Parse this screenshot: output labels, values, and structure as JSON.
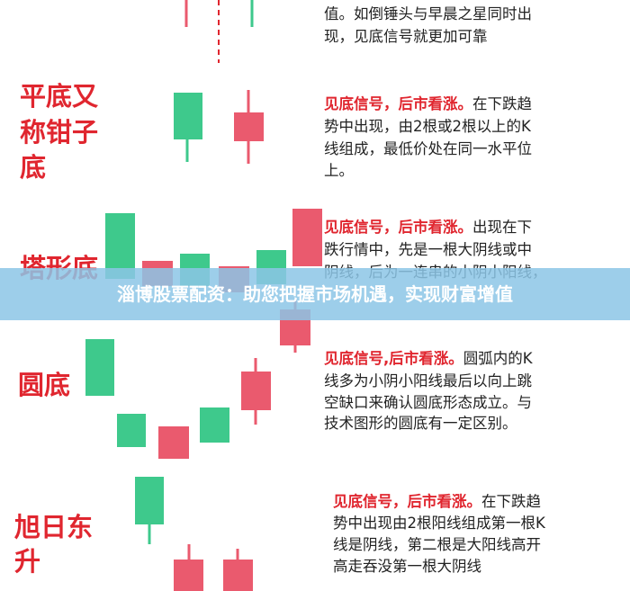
{
  "banner": "淄博股票配资：助您把握市场机遇，实现财富增值",
  "rows": [
    {
      "lines": [
        "值。如倒锤头与早晨之星同时出",
        "现，见底信号就更加可靠"
      ]
    },
    {
      "name_lines": [
        "平底又",
        "称钳子",
        "底"
      ],
      "highlight": "见底信号，后市看涨。",
      "lines": [
        "在下跌趋",
        "势中出现，由2根或2根以上的K",
        "线组成，最低价处在同一水平位",
        "上。"
      ]
    },
    {
      "name_lines": [
        "塔形底"
      ],
      "highlight": "见底信号，后市看涨。",
      "lines": [
        "出现在下",
        "跌行情中，先是一根大阴线或中",
        "阴线，后为一连串的小阴小阳线，"
      ]
    },
    {
      "name_lines": [
        "圆底"
      ],
      "highlight": "见底信号,后市看涨。",
      "lines": [
        "圆弧内的K",
        "线多为小阴小阳线最后以向上跳",
        "空缺口来确认圆底形态成立。与",
        "技术图形的圆底有一定区别。"
      ]
    },
    {
      "name_lines": [
        "旭日东",
        "升"
      ],
      "highlight": "见底信号，后市看涨。",
      "lines": [
        "在下跌趋",
        "势中出现由2根阳线组成第一根K",
        "线是阴线，第二根是大阳线高开",
        "高走吞没第一根大阴线"
      ]
    }
  ]
}
